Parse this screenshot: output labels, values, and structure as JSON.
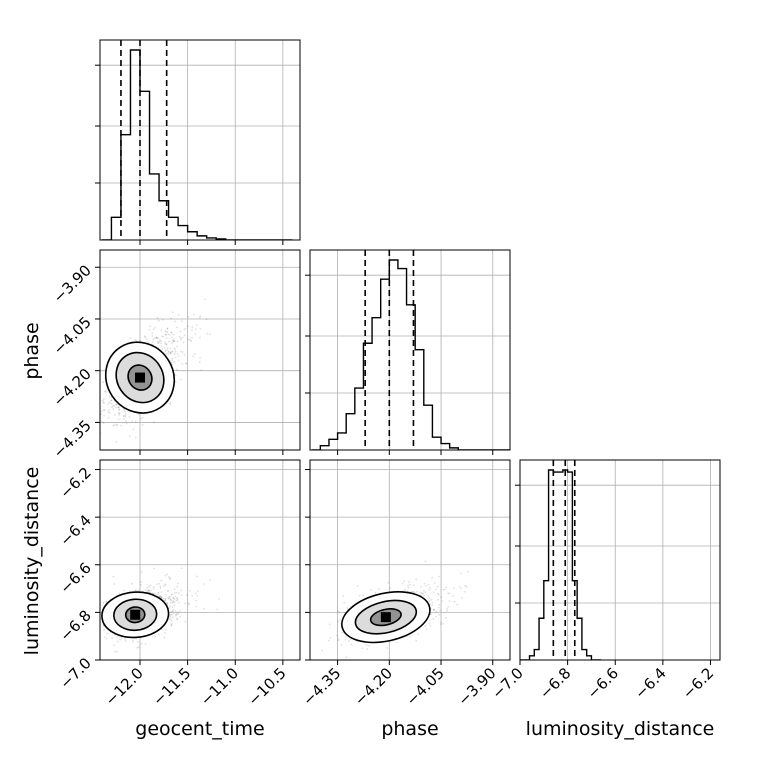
{
  "chart_data": {
    "type": "corner",
    "parameters": [
      "geocent_time",
      "phase",
      "luminosity_distance"
    ],
    "axis_labels": {
      "x": [
        "geocent_time",
        "phase",
        "luminosity_distance"
      ],
      "y": [
        "",
        "phase",
        "luminosity_distance"
      ]
    },
    "ranges": {
      "geocent_time": [
        -12.42,
        -10.32
      ],
      "phase": [
        -4.43,
        -3.85
      ],
      "luminosity_distance": [
        -7.0,
        -6.16
      ]
    },
    "ticks": {
      "geocent_time": [
        -12.0,
        -11.5,
        -11.0,
        -10.5
      ],
      "phase": [
        -4.35,
        -4.2,
        -4.05,
        -3.9
      ],
      "luminosity_distance": [
        -7.0,
        -6.8,
        -6.6,
        -6.4,
        -6.2
      ]
    },
    "tick_labels": {
      "geocent_time": [
        "−12.0",
        "−11.5",
        "−11.0",
        "−10.5"
      ],
      "phase": [
        "−4.35",
        "−4.20",
        "−4.05",
        "−3.90"
      ],
      "luminosity_distance": [
        "−7.0",
        "−6.8",
        "−6.6",
        "−6.4",
        "−6.2"
      ]
    },
    "histograms": {
      "geocent_time": {
        "bin_width": 0.1,
        "bin_centers": [
          -12.35,
          -12.25,
          -12.15,
          -12.05,
          -11.95,
          -11.85,
          -11.75,
          -11.65,
          -11.55,
          -11.45,
          -11.35,
          -11.25,
          -11.15,
          -11.05,
          -10.95,
          -10.85,
          -10.75,
          -10.65,
          -10.55,
          -10.45
        ],
        "counts": [
          0.0,
          0.11,
          0.51,
          0.92,
          0.72,
          0.32,
          0.19,
          0.11,
          0.07,
          0.04,
          0.02,
          0.01,
          0.005,
          0.0,
          0.0,
          0.0,
          0.0,
          0.0,
          0.0,
          0.0
        ],
        "quantiles": [
          -12.2,
          -12.0,
          -11.72
        ]
      },
      "phase": {
        "bin_width": 0.025,
        "bin_centers": [
          -4.4125,
          -4.3875,
          -4.3625,
          -4.3375,
          -4.3125,
          -4.2875,
          -4.2625,
          -4.2375,
          -4.2125,
          -4.1875,
          -4.1625,
          -4.1375,
          -4.1125,
          -4.0875,
          -4.0625,
          -4.0375,
          -4.0125,
          -3.9875,
          -3.9625,
          -3.9375,
          -3.9125,
          -3.8875,
          -3.8625
        ],
        "counts": [
          0.0,
          0.02,
          0.05,
          0.08,
          0.17,
          0.29,
          0.5,
          0.62,
          0.8,
          0.89,
          0.85,
          0.68,
          0.47,
          0.21,
          0.06,
          0.03,
          0.01,
          0.0,
          0.0,
          0.0,
          0.0,
          0.0,
          0.0
        ],
        "quantiles": [
          -4.27,
          -4.2,
          -4.13
        ]
      },
      "luminosity_distance": {
        "bin_width": 0.02,
        "bin_centers": [
          -6.99,
          -6.97,
          -6.95,
          -6.93,
          -6.91,
          -6.89,
          -6.87,
          -6.85,
          -6.83,
          -6.81,
          -6.79,
          -6.77,
          -6.75,
          -6.73,
          -6.71,
          -6.69,
          -6.67
        ],
        "counts": [
          0.0,
          0.0,
          0.02,
          0.05,
          0.2,
          0.38,
          0.91,
          0.9,
          0.9,
          0.91,
          0.9,
          0.38,
          0.2,
          0.05,
          0.02,
          0.0,
          0.0
        ],
        "quantiles": [
          -6.86,
          -6.81,
          -6.77
        ]
      }
    },
    "scatter_2d": [
      {
        "x_param": "geocent_time",
        "y_param": "phase",
        "center": [
          -12.0,
          -4.22
        ],
        "spread": [
          0.18,
          0.06
        ],
        "correlation": 0.55,
        "contour_levels": [
          {
            "width": 0.7,
            "height": 0.21
          },
          {
            "width": 0.48,
            "height": 0.15
          },
          {
            "width": 0.24,
            "height": 0.075
          }
        ]
      },
      {
        "x_param": "geocent_time",
        "y_param": "luminosity_distance",
        "center": [
          -12.05,
          -6.81
        ],
        "spread": [
          0.18,
          0.05
        ],
        "correlation": 0.1,
        "contour_levels": [
          {
            "width": 0.7,
            "height": 0.19
          },
          {
            "width": 0.45,
            "height": 0.13
          },
          {
            "width": 0.2,
            "height": 0.065
          }
        ]
      },
      {
        "x_param": "phase",
        "y_param": "luminosity_distance",
        "center": [
          -4.21,
          -6.82
        ],
        "spread": [
          0.06,
          0.05
        ],
        "correlation": 0.4,
        "contour_levels": [
          {
            "width": 0.26,
            "height": 0.2
          },
          {
            "width": 0.18,
            "height": 0.13
          },
          {
            "width": 0.09,
            "height": 0.065
          }
        ]
      }
    ],
    "grid": true
  }
}
